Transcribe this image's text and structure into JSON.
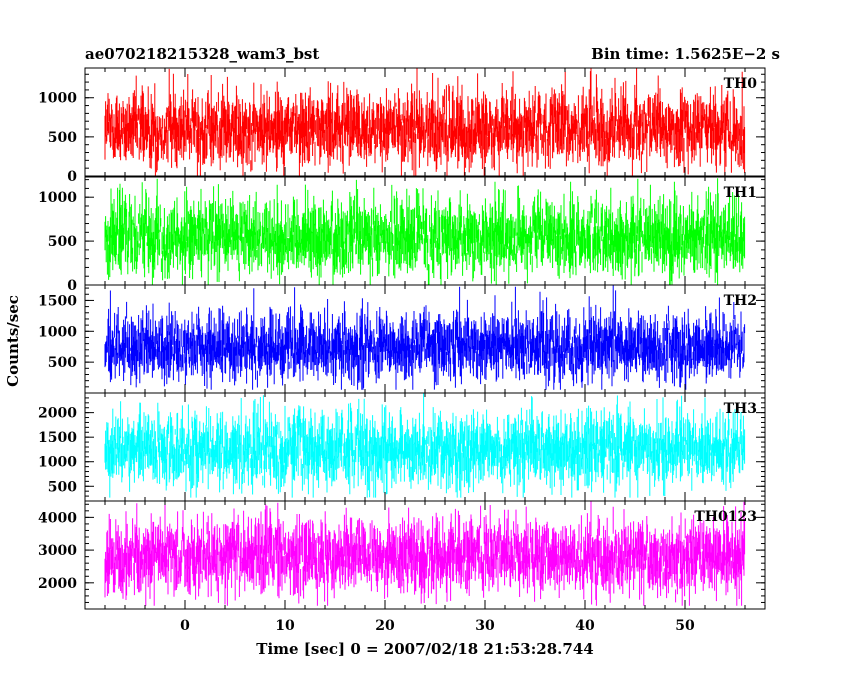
{
  "header": {
    "title": "ae070218215328_wam3_bst",
    "bin_time": "Bin time: 1.5625E−2 s"
  },
  "chart_data": {
    "type": "line",
    "title": "ae070218215328_wam3_bst",
    "subtitle": "Bin time: 1.5625E−2 s",
    "xlabel": "Time [sec] 0 = 2007/02/18 21:53:28.744",
    "ylabel": "Counts/sec",
    "xlim": [
      -10,
      58
    ],
    "x_data_range": [
      -8,
      56
    ],
    "x_ticks": [
      0,
      10,
      20,
      30,
      40,
      50
    ],
    "x_tick_labels": [
      "0",
      "10",
      "20",
      "30",
      "40",
      "50"
    ],
    "grid": false,
    "panels": [
      {
        "name": "TH0",
        "color": "#ff0000",
        "ylim": [
          0,
          1380
        ],
        "y_ticks": [
          0,
          500,
          1000
        ],
        "y_tick_labels": [
          "0",
          "500",
          "1000"
        ],
        "mean": 600,
        "typical_range": [
          80,
          1150
        ],
        "peak": 1380
      },
      {
        "name": "TH1",
        "color": "#00ff00",
        "ylim": [
          0,
          1230
        ],
        "y_ticks": [
          0,
          500,
          1000
        ],
        "y_tick_labels": [
          "0",
          "500",
          "1000"
        ],
        "mean": 550,
        "typical_range": [
          60,
          1050
        ],
        "peak": 1230
      },
      {
        "name": "TH2",
        "color": "#0000ff",
        "ylim": [
          0,
          1750
        ],
        "y_ticks": [
          500,
          1000,
          1500
        ],
        "y_tick_labels": [
          "500",
          "1000",
          "1500"
        ],
        "mean": 750,
        "typical_range": [
          150,
          1400
        ],
        "peak": 1750
      },
      {
        "name": "TH3",
        "color": "#00ffff",
        "ylim": [
          200,
          2400
        ],
        "y_ticks": [
          500,
          1000,
          1500,
          2000
        ],
        "y_tick_labels": [
          "500",
          "1000",
          "1500",
          "2000"
        ],
        "mean": 1250,
        "typical_range": [
          400,
          2100
        ],
        "peak": 2400
      },
      {
        "name": "TH0123",
        "color": "#ff00ff",
        "ylim": [
          1200,
          4500
        ],
        "y_ticks": [
          2000,
          3000,
          4000
        ],
        "y_tick_labels": [
          "2000",
          "3000",
          "4000"
        ],
        "mean": 2800,
        "typical_range": [
          1500,
          4100
        ],
        "peak": 4500
      }
    ]
  }
}
